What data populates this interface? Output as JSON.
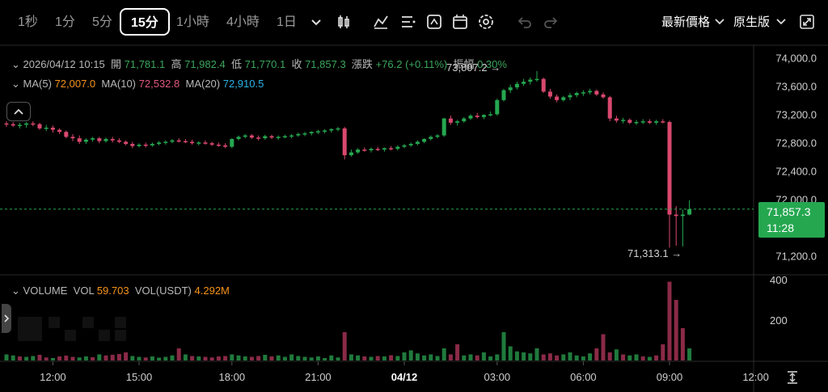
{
  "toolbar": {
    "timeframes": [
      "1秒",
      "1分",
      "5分",
      "15分",
      "1小時",
      "4小時",
      "1日"
    ],
    "active_timeframe": "15分",
    "price_type": "最新價格",
    "chart_mode": "原生版",
    "icons": [
      "chevron-down-icon",
      "candle-type-icon",
      "indicator-icon",
      "drawing-tools-icon",
      "template-icon",
      "calendar-icon",
      "settings-icon",
      "undo-icon",
      "redo-icon",
      "fullscreen-icon"
    ]
  },
  "ohlc": {
    "datetime": "2026/04/12 10:15",
    "open_label": "開",
    "open": "71,781.1",
    "high_label": "高",
    "high": "71,982.4",
    "low_label": "低",
    "low": "71,770.1",
    "close_label": "收",
    "close": "71,857.3",
    "change_label": "漲跌",
    "change": "+76.2 (+0.11%)",
    "amplitude_label": "振幅",
    "amplitude": "0.30%"
  },
  "ma": {
    "ma5_label": "MA(5)",
    "ma5": "72,007.0",
    "ma10_label": "MA(10)",
    "ma10": "72,532.8",
    "ma20_label": "MA(20)",
    "ma20": "72,910.5"
  },
  "volume_legend": {
    "title": "VOLUME",
    "vol_label": "VOL",
    "vol": "59.703",
    "vol_usdt_label": "VOL(USDT)",
    "vol_usdt": "4.292M"
  },
  "current_price": {
    "price": "71,857.3",
    "countdown": "11:28"
  },
  "annotations": {
    "high_marker": "73,807.2 →",
    "low_marker": "71,313.1 →"
  },
  "colors": {
    "up": "#25a750",
    "down": "#d9486e",
    "vol_up": "#1f7a3c",
    "vol_down": "#8a2a47"
  },
  "chart_data": {
    "type": "candlestick",
    "price_axis": {
      "ticks": [
        "74,000.0",
        "73,600.0",
        "73,200.0",
        "72,800.0",
        "72,400.0",
        "72,000.0",
        "71,200.0"
      ],
      "ylim": [
        71100,
        74050
      ]
    },
    "volume_axis": {
      "ticks": [
        "400",
        "200"
      ],
      "ylim": [
        0,
        400
      ]
    },
    "time_axis": {
      "ticks": [
        "12:00",
        "15:00",
        "18:00",
        "21:00",
        "04/12",
        "03:00",
        "06:00",
        "09:00",
        "12:00"
      ]
    },
    "candles": [
      [
        73070,
        73100,
        73020,
        73060
      ],
      [
        73060,
        73090,
        73020,
        73040
      ],
      [
        73040,
        73080,
        73000,
        73050
      ],
      [
        73050,
        73090,
        73010,
        73070
      ],
      [
        73070,
        73100,
        73030,
        73060
      ],
      [
        73060,
        73080,
        72980,
        73000
      ],
      [
        73000,
        73050,
        72960,
        73010
      ],
      [
        73010,
        73040,
        72940,
        72980
      ],
      [
        72980,
        73000,
        72920,
        72950
      ],
      [
        72950,
        72970,
        72860,
        72880
      ],
      [
        72880,
        72920,
        72820,
        72860
      ],
      [
        72860,
        72900,
        72780,
        72810
      ],
      [
        72810,
        72860,
        72780,
        72840
      ],
      [
        72840,
        72880,
        72810,
        72860
      ],
      [
        72860,
        72880,
        72790,
        72820
      ],
      [
        72820,
        72870,
        72800,
        72850
      ],
      [
        72850,
        72880,
        72800,
        72830
      ],
      [
        72830,
        72860,
        72790,
        72810
      ],
      [
        72810,
        72830,
        72760,
        72780
      ],
      [
        72780,
        72810,
        72720,
        72750
      ],
      [
        72750,
        72790,
        72730,
        72770
      ],
      [
        72770,
        72800,
        72730,
        72760
      ],
      [
        72760,
        72800,
        72740,
        72780
      ],
      [
        72780,
        72820,
        72760,
        72800
      ],
      [
        72800,
        72830,
        72770,
        72810
      ],
      [
        72810,
        72850,
        72790,
        72830
      ],
      [
        72830,
        72860,
        72800,
        72820
      ],
      [
        72820,
        72850,
        72790,
        72810
      ],
      [
        72810,
        72840,
        72770,
        72790
      ],
      [
        72790,
        72820,
        72760,
        72800
      ],
      [
        72800,
        72830,
        72770,
        72790
      ],
      [
        72790,
        72810,
        72750,
        72770
      ],
      [
        72770,
        72800,
        72740,
        72760
      ],
      [
        72760,
        72790,
        72720,
        72740
      ],
      [
        72740,
        72860,
        72720,
        72850
      ],
      [
        72850,
        72900,
        72830,
        72880
      ],
      [
        72880,
        72920,
        72860,
        72900
      ],
      [
        72900,
        72920,
        72850,
        72870
      ],
      [
        72870,
        72900,
        72830,
        72860
      ],
      [
        72860,
        72910,
        72840,
        72890
      ],
      [
        72890,
        72910,
        72850,
        72870
      ],
      [
        72870,
        72900,
        72840,
        72880
      ],
      [
        72880,
        72910,
        72860,
        72890
      ],
      [
        72890,
        72920,
        72860,
        72900
      ],
      [
        72900,
        72940,
        72880,
        72920
      ],
      [
        72920,
        72950,
        72890,
        72930
      ],
      [
        72930,
        72960,
        72900,
        72950
      ],
      [
        72950,
        72980,
        72920,
        72960
      ],
      [
        72960,
        72990,
        72930,
        72970
      ],
      [
        72970,
        73000,
        72940,
        72990
      ],
      [
        72990,
        73020,
        72960,
        73000
      ],
      [
        73000,
        73020,
        72560,
        72620
      ],
      [
        72620,
        72700,
        72600,
        72660
      ],
      [
        72660,
        72720,
        72640,
        72700
      ],
      [
        72700,
        72730,
        72670,
        72690
      ],
      [
        72690,
        72730,
        72660,
        72710
      ],
      [
        72710,
        72740,
        72680,
        72700
      ],
      [
        72700,
        72730,
        72670,
        72720
      ],
      [
        72720,
        72750,
        72690,
        72710
      ],
      [
        72710,
        72760,
        72690,
        72740
      ],
      [
        72740,
        72780,
        72720,
        72760
      ],
      [
        72760,
        72800,
        72740,
        72780
      ],
      [
        72780,
        72830,
        72760,
        72810
      ],
      [
        72810,
        72860,
        72790,
        72850
      ],
      [
        72850,
        72900,
        72830,
        72880
      ],
      [
        72880,
        72920,
        72860,
        72900
      ],
      [
        72900,
        73150,
        72880,
        73140
      ],
      [
        73140,
        73180,
        73050,
        73080
      ],
      [
        73080,
        73120,
        73040,
        73100
      ],
      [
        73100,
        73160,
        73080,
        73140
      ],
      [
        73140,
        73200,
        73120,
        73180
      ],
      [
        73180,
        73220,
        73140,
        73160
      ],
      [
        73160,
        73200,
        73130,
        73190
      ],
      [
        73190,
        73240,
        73170,
        73200
      ],
      [
        73200,
        73420,
        73180,
        73400
      ],
      [
        73400,
        73560,
        73380,
        73540
      ],
      [
        73540,
        73620,
        73500,
        73580
      ],
      [
        73580,
        73660,
        73550,
        73630
      ],
      [
        73630,
        73700,
        73600,
        73660
      ],
      [
        73660,
        73720,
        73620,
        73690
      ],
      [
        73690,
        73810,
        73660,
        73700
      ],
      [
        73700,
        73720,
        73500,
        73520
      ],
      [
        73520,
        73560,
        73420,
        73450
      ],
      [
        73450,
        73480,
        73370,
        73400
      ],
      [
        73400,
        73460,
        73380,
        73440
      ],
      [
        73440,
        73500,
        73400,
        73470
      ],
      [
        73470,
        73520,
        73440,
        73500
      ],
      [
        73500,
        73540,
        73460,
        73510
      ],
      [
        73510,
        73560,
        73480,
        73530
      ],
      [
        73530,
        73550,
        73460,
        73480
      ],
      [
        73480,
        73510,
        73420,
        73440
      ],
      [
        73440,
        73460,
        73100,
        73140
      ],
      [
        73140,
        73180,
        73080,
        73110
      ],
      [
        73110,
        73150,
        73070,
        73120
      ],
      [
        73120,
        73140,
        73060,
        73080
      ],
      [
        73080,
        73120,
        73050,
        73090
      ],
      [
        73090,
        73130,
        73060,
        73100
      ],
      [
        73100,
        73130,
        73060,
        73080
      ],
      [
        73080,
        73120,
        73050,
        73100
      ],
      [
        73100,
        73130,
        73070,
        73090
      ],
      [
        73090,
        73110,
        71313,
        71780
      ],
      [
        71780,
        71900,
        71340,
        71760
      ],
      [
        71760,
        71850,
        71330,
        71781
      ],
      [
        71781,
        71982,
        71770,
        71857
      ]
    ],
    "volumes": [
      [
        30,
        1
      ],
      [
        25,
        1
      ],
      [
        20,
        0
      ],
      [
        18,
        1
      ],
      [
        22,
        1
      ],
      [
        28,
        0
      ],
      [
        15,
        0
      ],
      [
        12,
        1
      ],
      [
        20,
        0
      ],
      [
        24,
        0
      ],
      [
        18,
        0
      ],
      [
        15,
        1
      ],
      [
        20,
        1
      ],
      [
        16,
        0
      ],
      [
        30,
        1
      ],
      [
        25,
        0
      ],
      [
        28,
        0
      ],
      [
        32,
        0
      ],
      [
        40,
        0
      ],
      [
        22,
        1
      ],
      [
        18,
        1
      ],
      [
        15,
        0
      ],
      [
        20,
        1
      ],
      [
        14,
        1
      ],
      [
        18,
        1
      ],
      [
        25,
        1
      ],
      [
        60,
        0
      ],
      [
        30,
        1
      ],
      [
        22,
        0
      ],
      [
        20,
        1
      ],
      [
        18,
        0
      ],
      [
        15,
        0
      ],
      [
        20,
        0
      ],
      [
        22,
        0
      ],
      [
        30,
        1
      ],
      [
        25,
        1
      ],
      [
        20,
        1
      ],
      [
        18,
        0
      ],
      [
        22,
        0
      ],
      [
        28,
        1
      ],
      [
        20,
        0
      ],
      [
        25,
        1
      ],
      [
        18,
        1
      ],
      [
        30,
        1
      ],
      [
        22,
        1
      ],
      [
        18,
        1
      ],
      [
        15,
        1
      ],
      [
        20,
        1
      ],
      [
        12,
        1
      ],
      [
        25,
        1
      ],
      [
        15,
        1
      ],
      [
        140,
        0
      ],
      [
        30,
        1
      ],
      [
        25,
        1
      ],
      [
        20,
        0
      ],
      [
        18,
        1
      ],
      [
        22,
        0
      ],
      [
        20,
        1
      ],
      [
        26,
        0
      ],
      [
        22,
        1
      ],
      [
        40,
        1
      ],
      [
        50,
        1
      ],
      [
        35,
        1
      ],
      [
        25,
        1
      ],
      [
        30,
        1
      ],
      [
        22,
        1
      ],
      [
        60,
        1
      ],
      [
        30,
        0
      ],
      [
        80,
        0
      ],
      [
        25,
        1
      ],
      [
        30,
        1
      ],
      [
        25,
        0
      ],
      [
        40,
        1
      ],
      [
        20,
        1
      ],
      [
        30,
        1
      ],
      [
        140,
        1
      ],
      [
        70,
        1
      ],
      [
        45,
        1
      ],
      [
        40,
        1
      ],
      [
        35,
        1
      ],
      [
        60,
        1
      ],
      [
        30,
        0
      ],
      [
        35,
        0
      ],
      [
        25,
        0
      ],
      [
        30,
        1
      ],
      [
        40,
        1
      ],
      [
        25,
        1
      ],
      [
        20,
        1
      ],
      [
        35,
        1
      ],
      [
        60,
        0
      ],
      [
        130,
        0
      ],
      [
        40,
        0
      ],
      [
        55,
        1
      ],
      [
        30,
        0
      ],
      [
        25,
        1
      ],
      [
        30,
        1
      ],
      [
        20,
        0
      ],
      [
        18,
        1
      ],
      [
        25,
        0
      ],
      [
        80,
        0
      ],
      [
        390,
        0
      ],
      [
        300,
        0
      ],
      [
        160,
        0
      ],
      [
        60,
        1
      ]
    ]
  }
}
